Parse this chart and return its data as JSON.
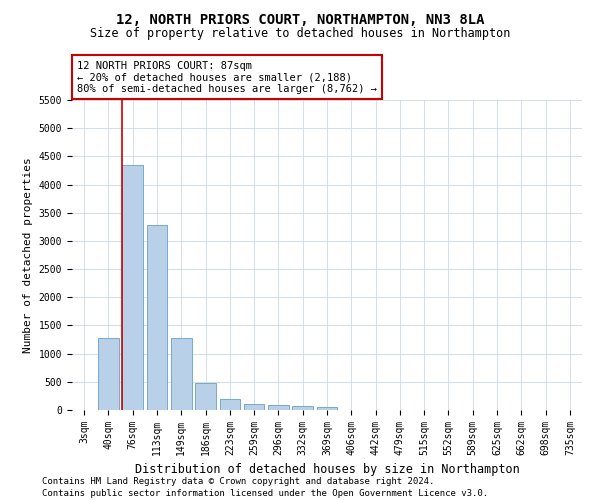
{
  "title": "12, NORTH PRIORS COURT, NORTHAMPTON, NN3 8LA",
  "subtitle": "Size of property relative to detached houses in Northampton",
  "xlabel": "Distribution of detached houses by size in Northampton",
  "ylabel": "Number of detached properties",
  "categories": [
    "3sqm",
    "40sqm",
    "76sqm",
    "113sqm",
    "149sqm",
    "186sqm",
    "223sqm",
    "259sqm",
    "296sqm",
    "332sqm",
    "369sqm",
    "406sqm",
    "442sqm",
    "479sqm",
    "515sqm",
    "552sqm",
    "589sqm",
    "625sqm",
    "662sqm",
    "698sqm",
    "735sqm"
  ],
  "values": [
    0,
    1270,
    4340,
    3290,
    1280,
    480,
    200,
    110,
    80,
    65,
    55,
    0,
    0,
    0,
    0,
    0,
    0,
    0,
    0,
    0,
    0
  ],
  "bar_color": "#b8d0e8",
  "bar_edge_color": "#6a9fc8",
  "property_line_index": 2,
  "property_line_color": "#cc0000",
  "annotation_text": "12 NORTH PRIORS COURT: 87sqm\n← 20% of detached houses are smaller (2,188)\n80% of semi-detached houses are larger (8,762) →",
  "annotation_box_color": "#ffffff",
  "annotation_box_edge": "#cc0000",
  "ylim_max": 5500,
  "yticks": [
    0,
    500,
    1000,
    1500,
    2000,
    2500,
    3000,
    3500,
    4000,
    4500,
    5000,
    5500
  ],
  "footer_line1": "Contains HM Land Registry data © Crown copyright and database right 2024.",
  "footer_line2": "Contains public sector information licensed under the Open Government Licence v3.0.",
  "title_fontsize": 10,
  "subtitle_fontsize": 8.5,
  "xlabel_fontsize": 8.5,
  "ylabel_fontsize": 8,
  "tick_fontsize": 7,
  "annotation_fontsize": 7.5,
  "footer_fontsize": 6.5,
  "bg_color": "#ffffff",
  "grid_color": "#ccd8ea"
}
